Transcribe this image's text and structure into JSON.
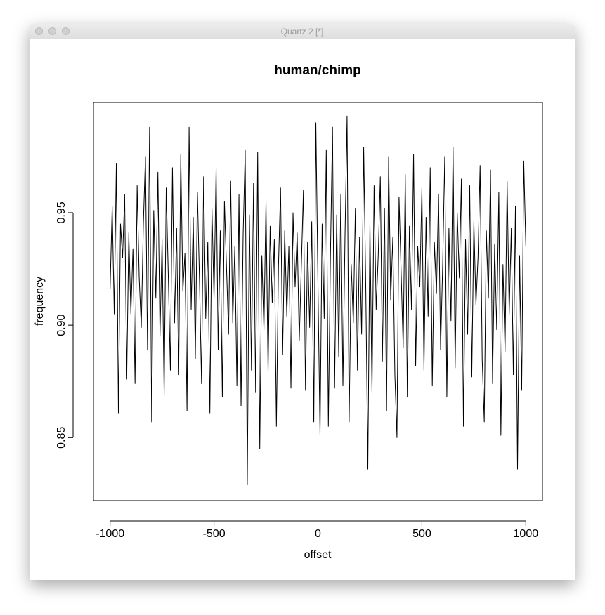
{
  "window": {
    "title": "Quartz 2 [*]"
  },
  "chart_data": {
    "type": "line",
    "title": "human/chimp",
    "x_label": "offset",
    "y_label": "frequency",
    "color": "#000000",
    "grid": false,
    "xlim": [
      -1080,
      1080
    ],
    "ylim": [
      0.822,
      0.999
    ],
    "xticks": [
      -1000,
      -500,
      0,
      500,
      1000
    ],
    "yticks": [
      0.85,
      {
        "value": 0.9,
        "label": "0.90"
      },
      0.95
    ],
    "x": [
      -1000,
      -990,
      -980,
      -970,
      -960,
      -950,
      -940,
      -930,
      -920,
      -910,
      -900,
      -890,
      -880,
      -870,
      -860,
      -850,
      -840,
      -830,
      -820,
      -810,
      -800,
      -790,
      -780,
      -770,
      -760,
      -750,
      -740,
      -730,
      -720,
      -710,
      -700,
      -690,
      -680,
      -670,
      -660,
      -650,
      -640,
      -630,
      -620,
      -610,
      -600,
      -590,
      -580,
      -570,
      -560,
      -550,
      -540,
      -530,
      -520,
      -510,
      -500,
      -490,
      -480,
      -470,
      -460,
      -450,
      -440,
      -430,
      -420,
      -410,
      -400,
      -390,
      -380,
      -370,
      -360,
      -350,
      -340,
      -330,
      -320,
      -310,
      -300,
      -290,
      -280,
      -270,
      -260,
      -250,
      -240,
      -230,
      -220,
      -210,
      -200,
      -190,
      -180,
      -170,
      -160,
      -150,
      -140,
      -130,
      -120,
      -110,
      -100,
      -90,
      -80,
      -70,
      -60,
      -50,
      -40,
      -30,
      -20,
      -10,
      0,
      10,
      20,
      30,
      40,
      50,
      60,
      70,
      80,
      90,
      100,
      110,
      120,
      130,
      140,
      150,
      160,
      170,
      180,
      190,
      200,
      210,
      220,
      230,
      240,
      250,
      260,
      270,
      280,
      290,
      300,
      310,
      320,
      330,
      340,
      350,
      360,
      370,
      380,
      390,
      400,
      410,
      420,
      430,
      440,
      450,
      460,
      470,
      480,
      490,
      500,
      510,
      520,
      530,
      540,
      550,
      560,
      570,
      580,
      590,
      600,
      610,
      620,
      630,
      640,
      650,
      660,
      670,
      680,
      690,
      700,
      710,
      720,
      730,
      740,
      750,
      760,
      770,
      780,
      790,
      800,
      810,
      820,
      830,
      840,
      850,
      860,
      870,
      880,
      890,
      900,
      910,
      920,
      930,
      940,
      950,
      960,
      970,
      980,
      990,
      1000
    ],
    "values": [
      0.916,
      0.953,
      0.905,
      0.972,
      0.861,
      0.945,
      0.93,
      0.958,
      0.876,
      0.941,
      0.905,
      0.934,
      0.874,
      0.962,
      0.921,
      0.899,
      0.945,
      0.975,
      0.889,
      0.988,
      0.857,
      0.951,
      0.912,
      0.968,
      0.895,
      0.938,
      0.869,
      0.961,
      0.922,
      0.88,
      0.97,
      0.901,
      0.943,
      0.878,
      0.976,
      0.915,
      0.932,
      0.862,
      0.988,
      0.907,
      0.948,
      0.885,
      0.959,
      0.92,
      0.874,
      0.966,
      0.903,
      0.937,
      0.861,
      0.952,
      0.912,
      0.97,
      0.889,
      0.942,
      0.868,
      0.955,
      0.926,
      0.896,
      0.964,
      0.901,
      0.935,
      0.873,
      0.958,
      0.864,
      0.94,
      0.978,
      0.829,
      0.949,
      0.88,
      0.963,
      0.87,
      0.977,
      0.845,
      0.931,
      0.898,
      0.955,
      0.879,
      0.944,
      0.91,
      0.938,
      0.855,
      0.926,
      0.961,
      0.887,
      0.942,
      0.904,
      0.935,
      0.872,
      0.95,
      0.917,
      0.941,
      0.893,
      0.926,
      0.96,
      0.871,
      0.937,
      0.899,
      0.946,
      0.857,
      0.99,
      0.918,
      0.851,
      0.945,
      0.903,
      0.978,
      0.855,
      0.931,
      0.988,
      0.872,
      0.949,
      0.886,
      0.958,
      0.873,
      0.939,
      0.993,
      0.857,
      0.927,
      0.901,
      0.952,
      0.88,
      0.939,
      0.896,
      0.979,
      0.917,
      0.836,
      0.945,
      0.87,
      0.962,
      0.907,
      0.931,
      0.966,
      0.884,
      0.952,
      0.862,
      0.975,
      0.911,
      0.939,
      0.878,
      0.85,
      0.957,
      0.924,
      0.89,
      0.967,
      0.868,
      0.944,
      0.907,
      0.976,
      0.882,
      0.935,
      0.917,
      0.961,
      0.88,
      0.948,
      0.904,
      0.97,
      0.873,
      0.937,
      0.914,
      0.958,
      0.889,
      0.927,
      0.975,
      0.868,
      0.943,
      0.902,
      0.979,
      0.881,
      0.95,
      0.921,
      0.965,
      0.855,
      0.938,
      0.896,
      0.962,
      0.877,
      0.946,
      0.909,
      0.93,
      0.971,
      0.885,
      0.857,
      0.942,
      0.912,
      0.969,
      0.874,
      0.936,
      0.898,
      0.959,
      0.851,
      0.927,
      0.888,
      0.964,
      0.905,
      0.943,
      0.878,
      0.953,
      0.836,
      0.931,
      0.871,
      0.973,
      0.935
    ]
  }
}
